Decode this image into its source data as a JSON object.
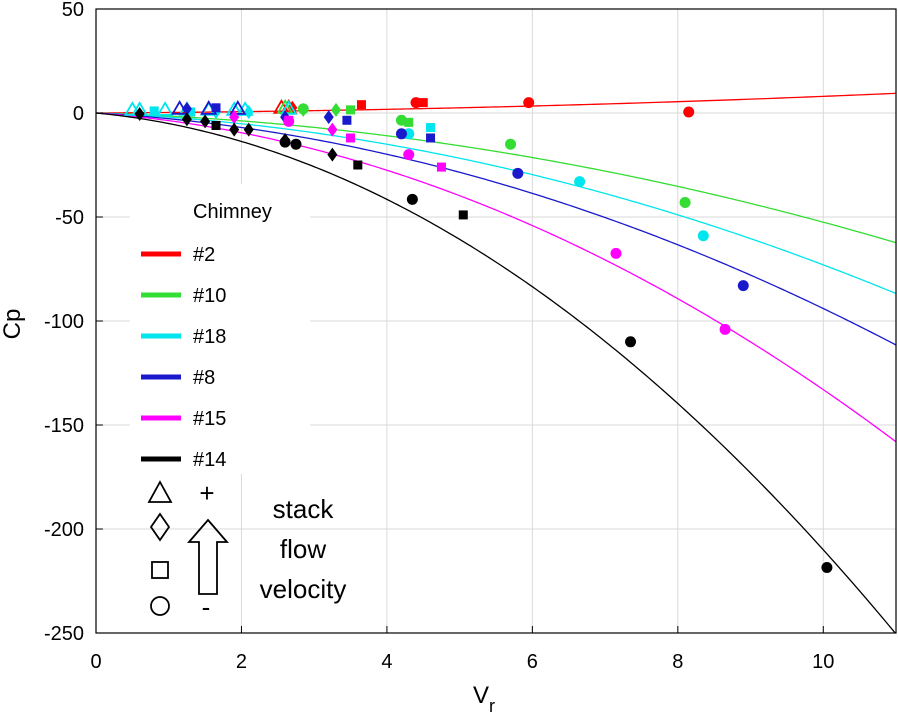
{
  "chart_data": {
    "type": "scatter",
    "title": "",
    "xlabel": "V",
    "xlabel_sub": "r",
    "ylabel": "Cp",
    "xlim": [
      0,
      11
    ],
    "ylim": [
      -250,
      50
    ],
    "xticks": [
      0,
      2,
      4,
      6,
      8,
      10
    ],
    "yticks": [
      50,
      0,
      -50,
      -100,
      -150,
      -200,
      -250
    ],
    "grid": true,
    "legend_title": "Chimney",
    "legend_position": "left",
    "series": [
      {
        "name": "#2",
        "color": "#ff0000",
        "fit_coefficients": [
          0.2,
          0.06
        ],
        "points": [
          {
            "marker": "triangle",
            "x": 2.55,
            "y": 2.5
          },
          {
            "marker": "triangle",
            "x": 2.65,
            "y": 2.5
          },
          {
            "marker": "diamond",
            "x": 2.7,
            "y": 2.5
          },
          {
            "marker": "square",
            "x": 3.65,
            "y": 4
          },
          {
            "marker": "square",
            "x": 4.5,
            "y": 5
          },
          {
            "marker": "circle",
            "x": 4.4,
            "y": 5
          },
          {
            "marker": "circle",
            "x": 5.95,
            "y": 5
          },
          {
            "marker": "circle",
            "x": 8.15,
            "y": 0.5
          }
        ]
      },
      {
        "name": "#10",
        "color": "#33dd33",
        "fit_coefficients": [
          -1.05,
          -0.42
        ],
        "points": [
          {
            "marker": "triangle",
            "x": 2.6,
            "y": 2.5
          },
          {
            "marker": "diamond",
            "x": 2.85,
            "y": 1.5
          },
          {
            "marker": "diamond",
            "x": 3.3,
            "y": 1.5
          },
          {
            "marker": "square",
            "x": 3.5,
            "y": 1.5
          },
          {
            "marker": "square",
            "x": 4.3,
            "y": -4.5
          },
          {
            "marker": "circle",
            "x": 2.85,
            "y": 2
          },
          {
            "marker": "circle",
            "x": 4.2,
            "y": -3.5
          },
          {
            "marker": "circle",
            "x": 5.7,
            "y": -15
          },
          {
            "marker": "circle",
            "x": 8.1,
            "y": -43
          }
        ]
      },
      {
        "name": "#18",
        "color": "#00e5ee",
        "fit_coefficients": [
          -1.4,
          -0.59
        ],
        "points": [
          {
            "marker": "triangle",
            "x": 0.5,
            "y": 1.5
          },
          {
            "marker": "triangle",
            "x": 0.6,
            "y": 1.5
          },
          {
            "marker": "triangle",
            "x": 0.95,
            "y": 1.5
          },
          {
            "marker": "triangle",
            "x": 1.25,
            "y": 1.5
          },
          {
            "marker": "triangle",
            "x": 1.55,
            "y": 1.5
          },
          {
            "marker": "triangle",
            "x": 1.9,
            "y": 1.5
          },
          {
            "marker": "triangle",
            "x": 2.05,
            "y": 1.5
          },
          {
            "marker": "triangle",
            "x": 2.65,
            "y": 2
          },
          {
            "marker": "diamond",
            "x": 1.65,
            "y": 0.5
          },
          {
            "marker": "diamond",
            "x": 2.1,
            "y": 0.5
          },
          {
            "marker": "square",
            "x": 0.8,
            "y": 1
          },
          {
            "marker": "square",
            "x": 1.3,
            "y": 0.5
          },
          {
            "marker": "square",
            "x": 4.6,
            "y": -7
          },
          {
            "marker": "circle",
            "x": 4.3,
            "y": -10
          },
          {
            "marker": "circle",
            "x": 6.65,
            "y": -33
          },
          {
            "marker": "circle",
            "x": 8.35,
            "y": -59
          }
        ]
      },
      {
        "name": "#8",
        "color": "#1a1acc",
        "fit_coefficients": [
          -2.0,
          -0.74
        ],
        "points": [
          {
            "marker": "triangle",
            "x": 1.15,
            "y": 2
          },
          {
            "marker": "triangle",
            "x": 1.55,
            "y": 2
          },
          {
            "marker": "triangle",
            "x": 1.95,
            "y": 2
          },
          {
            "marker": "diamond",
            "x": 1.25,
            "y": 2
          },
          {
            "marker": "diamond",
            "x": 2.6,
            "y": -2
          },
          {
            "marker": "diamond",
            "x": 3.2,
            "y": -2
          },
          {
            "marker": "square",
            "x": 1.65,
            "y": 2.5
          },
          {
            "marker": "square",
            "x": 3.45,
            "y": -3.5
          },
          {
            "marker": "square",
            "x": 4.6,
            "y": -12
          },
          {
            "marker": "circle",
            "x": 4.2,
            "y": -10
          },
          {
            "marker": "circle",
            "x": 5.8,
            "y": -29
          },
          {
            "marker": "circle",
            "x": 8.9,
            "y": -83
          }
        ]
      },
      {
        "name": "#15",
        "color": "#ff00ff",
        "fit_coefficients": [
          -2.6,
          -1.07
        ],
        "points": [
          {
            "marker": "diamond",
            "x": 1.9,
            "y": -2
          },
          {
            "marker": "diamond",
            "x": 3.25,
            "y": -8
          },
          {
            "marker": "square",
            "x": 2.65,
            "y": -3.5
          },
          {
            "marker": "square",
            "x": 3.5,
            "y": -12
          },
          {
            "marker": "square",
            "x": 4.75,
            "y": -26
          },
          {
            "marker": "circle",
            "x": 2.65,
            "y": -4
          },
          {
            "marker": "circle",
            "x": 4.3,
            "y": -20
          },
          {
            "marker": "circle",
            "x": 7.15,
            "y": -67.5
          },
          {
            "marker": "circle",
            "x": 8.65,
            "y": -104
          }
        ]
      },
      {
        "name": "#14",
        "color": "#000000",
        "fit_coefficients": [
          -3.3,
          -1.77
        ],
        "points": [
          {
            "marker": "diamond",
            "x": 0.6,
            "y": -0.5
          },
          {
            "marker": "diamond",
            "x": 1.25,
            "y": -3
          },
          {
            "marker": "diamond",
            "x": 1.5,
            "y": -4
          },
          {
            "marker": "diamond",
            "x": 1.9,
            "y": -8
          },
          {
            "marker": "diamond",
            "x": 2.1,
            "y": -8
          },
          {
            "marker": "diamond",
            "x": 2.6,
            "y": -13
          },
          {
            "marker": "diamond",
            "x": 3.25,
            "y": -20
          },
          {
            "marker": "square",
            "x": 1.65,
            "y": -6
          },
          {
            "marker": "square",
            "x": 3.6,
            "y": -25
          },
          {
            "marker": "square",
            "x": 5.05,
            "y": -49
          },
          {
            "marker": "circle",
            "x": 2.6,
            "y": -14
          },
          {
            "marker": "circle",
            "x": 2.75,
            "y": -15
          },
          {
            "marker": "circle",
            "x": 4.35,
            "y": -41.5
          },
          {
            "marker": "circle",
            "x": 7.35,
            "y": -110
          },
          {
            "marker": "circle",
            "x": 10.05,
            "y": -218.5
          }
        ]
      }
    ],
    "annotations": {
      "plus_sign": "+",
      "minus_sign": "-",
      "velocity_text": [
        "stack",
        "flow",
        "velocity"
      ]
    }
  }
}
